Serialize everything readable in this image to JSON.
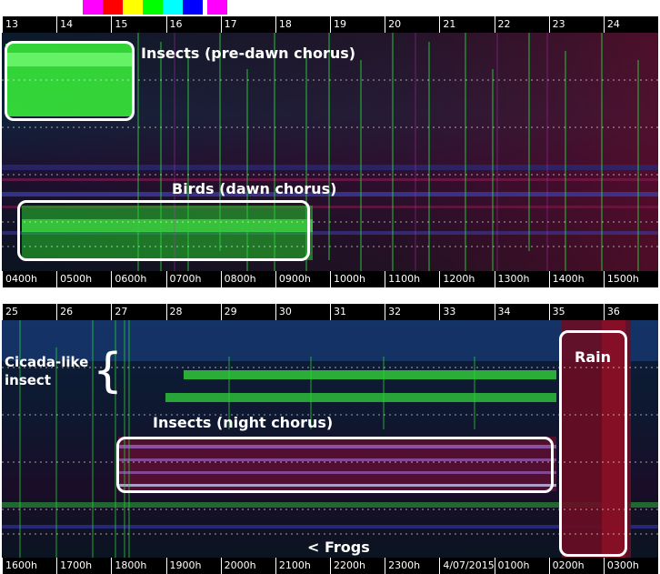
{
  "legend_swatches": [
    "#ff00ff",
    "#ff0000",
    "#ffff00",
    "#00ff00",
    "#00ffff",
    "#0000ff",
    "#ff00ff"
  ],
  "top_panel": {
    "segment_ticks": [
      "13",
      "14",
      "15",
      "16",
      "17",
      "18",
      "19",
      "20",
      "21",
      "22",
      "23",
      "24"
    ],
    "hour_ticks": [
      "0400h",
      "0500h",
      "0600h",
      "0700h",
      "0800h",
      "0900h",
      "1000h",
      "1100h",
      "1200h",
      "1300h",
      "1400h",
      "1500h"
    ],
    "annotations": {
      "insects_predawn": "Insects (pre-dawn chorus)",
      "birds_dawn": "Birds (dawn chorus)"
    }
  },
  "bottom_panel": {
    "segment_ticks": [
      "25",
      "26",
      "27",
      "28",
      "29",
      "30",
      "31",
      "32",
      "33",
      "34",
      "35",
      "36"
    ],
    "hour_ticks": [
      "1600h",
      "1700h",
      "1800h",
      "1900h",
      "2000h",
      "2100h",
      "2200h",
      "2300h",
      "4/07/2015",
      "0100h",
      "0200h",
      "0300h"
    ],
    "annotations": {
      "cicada": "Cicada-like insect",
      "insects_night": "Insects (night chorus)",
      "rain": "Rain",
      "frogs": "< Frogs"
    }
  }
}
